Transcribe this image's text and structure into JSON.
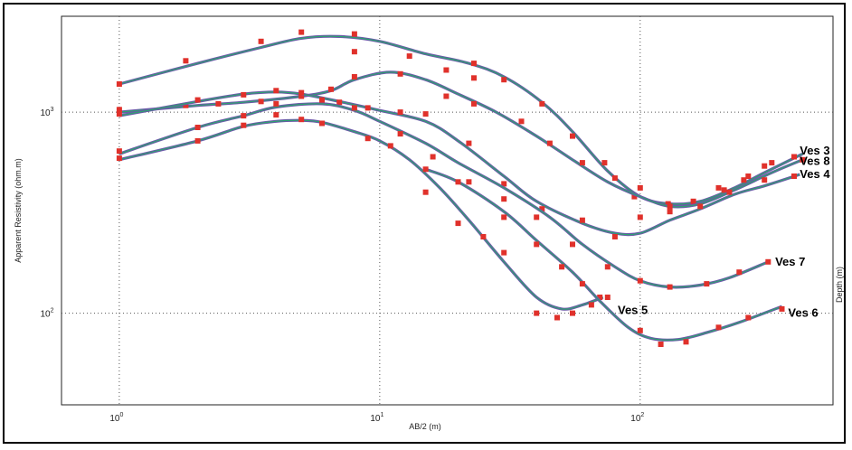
{
  "chart_data": {
    "type": "scatter",
    "xlabel": "AB/2 (m)",
    "ylabel": "Apparent Resistivity (ohm.m)",
    "y2label": "Depth (m)",
    "xscale": "log",
    "yscale": "log",
    "xlim": [
      0.6,
      550
    ],
    "ylim": [
      35,
      3000
    ],
    "x_ticks": [
      {
        "base": "10",
        "exp": "0",
        "value": 1
      },
      {
        "base": "10",
        "exp": "1",
        "value": 10
      },
      {
        "base": "10",
        "exp": "2",
        "value": 100
      }
    ],
    "y_ticks": [
      {
        "base": "10",
        "exp": "3",
        "value": 1000
      },
      {
        "base": "10",
        "exp": "2",
        "value": 100
      }
    ],
    "grid": "dotted at decades",
    "colors": {
      "points": "#e0312b",
      "model": "#6a5aa8",
      "fit": "#2aa66c"
    },
    "series": [
      {
        "name": "Ves 3",
        "points": [
          [
            1,
            1380
          ],
          [
            1.8,
            1800
          ],
          [
            3.5,
            2250
          ],
          [
            5,
            2500
          ],
          [
            8,
            2450
          ],
          [
            8,
            2000
          ],
          [
            13,
            1900
          ],
          [
            18,
            1620
          ],
          [
            23,
            1750
          ],
          [
            23,
            1480
          ],
          [
            30,
            1450
          ],
          [
            42,
            1100
          ],
          [
            55,
            760
          ],
          [
            73,
            560
          ],
          [
            95,
            380
          ],
          [
            128,
            350
          ],
          [
            160,
            360
          ],
          [
            210,
            410
          ],
          [
            250,
            460
          ],
          [
            300,
            540
          ],
          [
            390,
            600
          ]
        ],
        "fit": [
          [
            1,
            1380
          ],
          [
            2,
            1750
          ],
          [
            3.5,
            2100
          ],
          [
            5,
            2330
          ],
          [
            7,
            2380
          ],
          [
            10,
            2250
          ],
          [
            15,
            1950
          ],
          [
            22,
            1750
          ],
          [
            30,
            1500
          ],
          [
            42,
            1120
          ],
          [
            55,
            800
          ],
          [
            75,
            510
          ],
          [
            100,
            380
          ],
          [
            130,
            350
          ],
          [
            170,
            360
          ],
          [
            230,
            420
          ],
          [
            300,
            500
          ],
          [
            420,
            620
          ]
        ]
      },
      {
        "name": "Ves 8",
        "points": [
          [
            1,
            1030
          ],
          [
            1.8,
            1080
          ],
          [
            2.4,
            1100
          ],
          [
            3.5,
            1130
          ],
          [
            5,
            1200
          ],
          [
            6.5,
            1300
          ],
          [
            8,
            1500
          ],
          [
            12,
            1550
          ],
          [
            18,
            1200
          ],
          [
            23,
            1100
          ],
          [
            35,
            900
          ],
          [
            45,
            700
          ],
          [
            60,
            560
          ],
          [
            80,
            470
          ],
          [
            100,
            420
          ],
          [
            130,
            340
          ],
          [
            200,
            420
          ],
          [
            260,
            480
          ],
          [
            320,
            560
          ],
          [
            420,
            580
          ]
        ],
        "fit": [
          [
            1,
            1000
          ],
          [
            2,
            1080
          ],
          [
            3,
            1120
          ],
          [
            5,
            1200
          ],
          [
            6.5,
            1280
          ],
          [
            8,
            1450
          ],
          [
            11,
            1580
          ],
          [
            15,
            1450
          ],
          [
            20,
            1230
          ],
          [
            28,
            1000
          ],
          [
            40,
            760
          ],
          [
            55,
            580
          ],
          [
            75,
            450
          ],
          [
            100,
            380
          ],
          [
            130,
            340
          ],
          [
            170,
            350
          ],
          [
            230,
            410
          ],
          [
            320,
            500
          ],
          [
            420,
            580
          ]
        ]
      },
      {
        "name": "Ves 4",
        "points": [
          [
            1,
            980
          ],
          [
            2,
            1150
          ],
          [
            3,
            1220
          ],
          [
            4,
            1280
          ],
          [
            5,
            1250
          ],
          [
            7,
            1120
          ],
          [
            9,
            1050
          ],
          [
            12,
            1000
          ],
          [
            15,
            980
          ],
          [
            22,
            700
          ],
          [
            30,
            440
          ],
          [
            42,
            330
          ],
          [
            60,
            290
          ],
          [
            80,
            240
          ],
          [
            100,
            300
          ],
          [
            130,
            320
          ],
          [
            170,
            340
          ],
          [
            220,
            400
          ],
          [
            300,
            460
          ],
          [
            390,
            480
          ]
        ],
        "fit": [
          [
            1,
            960
          ],
          [
            2,
            1130
          ],
          [
            3,
            1230
          ],
          [
            4,
            1260
          ],
          [
            5,
            1230
          ],
          [
            7,
            1130
          ],
          [
            10,
            1020
          ],
          [
            15,
            900
          ],
          [
            20,
            720
          ],
          [
            30,
            480
          ],
          [
            40,
            360
          ],
          [
            60,
            280
          ],
          [
            80,
            250
          ],
          [
            100,
            250
          ],
          [
            130,
            290
          ],
          [
            170,
            330
          ],
          [
            230,
            390
          ],
          [
            300,
            430
          ],
          [
            410,
            490
          ]
        ]
      },
      {
        "name": "Ves 7",
        "points": [
          [
            1,
            640
          ],
          [
            2,
            840
          ],
          [
            3,
            960
          ],
          [
            4,
            1100
          ],
          [
            6,
            1150
          ],
          [
            8,
            1050
          ],
          [
            12,
            780
          ],
          [
            16,
            600
          ],
          [
            22,
            450
          ],
          [
            30,
            370
          ],
          [
            40,
            300
          ],
          [
            55,
            220
          ],
          [
            75,
            170
          ],
          [
            100,
            145
          ],
          [
            130,
            135
          ],
          [
            180,
            140
          ],
          [
            240,
            160
          ],
          [
            310,
            180
          ]
        ],
        "fit": [
          [
            1,
            620
          ],
          [
            2,
            840
          ],
          [
            3,
            960
          ],
          [
            4,
            1060
          ],
          [
            6,
            1100
          ],
          [
            8,
            1020
          ],
          [
            10,
            900
          ],
          [
            15,
            700
          ],
          [
            20,
            560
          ],
          [
            30,
            420
          ],
          [
            45,
            300
          ],
          [
            60,
            220
          ],
          [
            80,
            170
          ],
          [
            100,
            145
          ],
          [
            130,
            135
          ],
          [
            170,
            138
          ],
          [
            220,
            150
          ],
          [
            310,
            180
          ]
        ]
      },
      {
        "name": "Ves 5",
        "points": [
          [
            1,
            590
          ],
          [
            2,
            720
          ],
          [
            3,
            860
          ],
          [
            4,
            970
          ],
          [
            5,
            920
          ],
          [
            6,
            880
          ],
          [
            9,
            740
          ],
          [
            11,
            680
          ],
          [
            15,
            400
          ],
          [
            20,
            280
          ],
          [
            25,
            240
          ],
          [
            30,
            200
          ],
          [
            40,
            100
          ],
          [
            48,
            95
          ],
          [
            55,
            100
          ],
          [
            65,
            110
          ],
          [
            70,
            120
          ]
        ],
        "fit": [
          [
            1,
            580
          ],
          [
            2,
            720
          ],
          [
            3,
            850
          ],
          [
            4,
            900
          ],
          [
            5,
            910
          ],
          [
            6,
            890
          ],
          [
            8,
            800
          ],
          [
            10,
            720
          ],
          [
            13,
            580
          ],
          [
            17,
            420
          ],
          [
            22,
            290
          ],
          [
            30,
            180
          ],
          [
            40,
            120
          ],
          [
            50,
            105
          ],
          [
            60,
            110
          ],
          [
            72,
            120
          ]
        ]
      },
      {
        "name": "Ves 6",
        "points": [
          [
            15,
            520
          ],
          [
            20,
            450
          ],
          [
            30,
            300
          ],
          [
            40,
            220
          ],
          [
            50,
            170
          ],
          [
            60,
            140
          ],
          [
            75,
            120
          ],
          [
            100,
            82
          ],
          [
            120,
            70
          ],
          [
            150,
            72
          ],
          [
            200,
            85
          ],
          [
            260,
            95
          ],
          [
            350,
            105
          ]
        ],
        "fit": [
          [
            15,
            520
          ],
          [
            20,
            450
          ],
          [
            30,
            320
          ],
          [
            40,
            230
          ],
          [
            55,
            160
          ],
          [
            70,
            115
          ],
          [
            90,
            85
          ],
          [
            110,
            75
          ],
          [
            140,
            74
          ],
          [
            180,
            80
          ],
          [
            240,
            90
          ],
          [
            350,
            108
          ]
        ]
      }
    ],
    "labels": [
      {
        "text": "Ves 3",
        "x": 410,
        "y": 640
      },
      {
        "text": "Ves 8",
        "x": 410,
        "y": 570
      },
      {
        "text": "Ves 4",
        "x": 410,
        "y": 490
      },
      {
        "text": "Ves 7",
        "x": 330,
        "y": 180
      },
      {
        "text": "Ves 5",
        "x": 82,
        "y": 103
      },
      {
        "text": "Ves 6",
        "x": 370,
        "y": 100
      }
    ]
  }
}
